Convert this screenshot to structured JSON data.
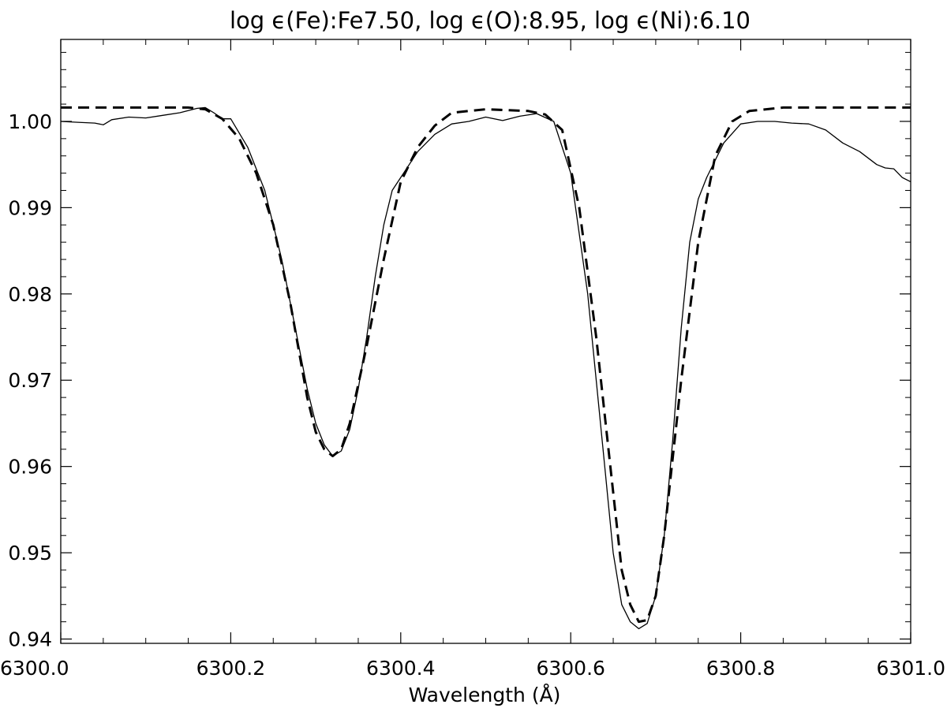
{
  "chart_data": {
    "type": "line",
    "title": "log ϵ(Fe):Fe7.50, log ϵ(O):8.95, log ϵ(Ni):6.10",
    "xlabel": "Wavelength (Å)",
    "ylabel": "",
    "xlim": [
      6300.0,
      6301.0
    ],
    "ylim": [
      0.9395,
      1.0095
    ],
    "x_ticks": [
      6300.0,
      6300.2,
      6300.4,
      6300.6,
      6300.8,
      6301.0
    ],
    "x_tick_labels": [
      "6300.0",
      "6300.2",
      "6300.4",
      "6300.6",
      "6300.8",
      "6301.0"
    ],
    "y_ticks": [
      0.94,
      0.95,
      0.96,
      0.97,
      0.98,
      0.99,
      1.0
    ],
    "y_tick_labels": [
      "0.94",
      "0.95",
      "0.96",
      "0.97",
      "0.98",
      "0.99",
      "1.00"
    ],
    "grid": false,
    "legend": "none",
    "series": [
      {
        "style": "solid",
        "color": "#000000",
        "x": [
          6300.0,
          6300.02,
          6300.04,
          6300.05,
          6300.06,
          6300.08,
          6300.1,
          6300.12,
          6300.14,
          6300.16,
          6300.17,
          6300.18,
          6300.19,
          6300.2,
          6300.22,
          6300.24,
          6300.26,
          6300.27,
          6300.28,
          6300.29,
          6300.3,
          6300.31,
          6300.32,
          6300.33,
          6300.34,
          6300.35,
          6300.36,
          6300.37,
          6300.38,
          6300.39,
          6300.4,
          6300.42,
          6300.44,
          6300.46,
          6300.48,
          6300.5,
          6300.52,
          6300.54,
          6300.56,
          6300.58,
          6300.6,
          6300.62,
          6300.64,
          6300.65,
          6300.66,
          6300.67,
          6300.68,
          6300.69,
          6300.7,
          6300.71,
          6300.72,
          6300.73,
          6300.74,
          6300.75,
          6300.76,
          6300.78,
          6300.8,
          6300.82,
          6300.84,
          6300.86,
          6300.88,
          6300.9,
          6300.92,
          6300.94,
          6300.96,
          6300.97,
          6300.98,
          6300.99,
          6301.0
        ],
        "y": [
          1.0,
          0.9999,
          0.9998,
          0.9996,
          1.0002,
          1.0005,
          1.0004,
          1.0007,
          1.001,
          1.0015,
          1.0016,
          1.001,
          1.0003,
          1.0003,
          0.997,
          0.992,
          0.984,
          0.979,
          0.974,
          0.969,
          0.965,
          0.9625,
          0.9612,
          0.9618,
          0.9643,
          0.969,
          0.975,
          0.982,
          0.988,
          0.992,
          0.9935,
          0.9965,
          0.9985,
          0.9997,
          1.0,
          1.0005,
          1.0001,
          1.0006,
          1.0009,
          1.0,
          0.994,
          0.98,
          0.96,
          0.95,
          0.944,
          0.942,
          0.9412,
          0.9418,
          0.945,
          0.952,
          0.963,
          0.976,
          0.986,
          0.991,
          0.9935,
          0.9975,
          0.9997,
          1.0,
          1.0,
          0.9998,
          0.9997,
          0.999,
          0.9975,
          0.9965,
          0.995,
          0.9946,
          0.9945,
          0.9935,
          0.993
        ]
      },
      {
        "style": "dashed",
        "color": "#000000",
        "x": [
          6300.0,
          6300.05,
          6300.1,
          6300.15,
          6300.17,
          6300.19,
          6300.21,
          6300.23,
          6300.25,
          6300.27,
          6300.29,
          6300.3,
          6300.31,
          6300.32,
          6300.33,
          6300.34,
          6300.36,
          6300.38,
          6300.4,
          6300.42,
          6300.44,
          6300.46,
          6300.5,
          6300.55,
          6300.57,
          6300.59,
          6300.61,
          6300.63,
          6300.65,
          6300.66,
          6300.67,
          6300.68,
          6300.69,
          6300.7,
          6300.71,
          6300.73,
          6300.75,
          6300.77,
          6300.79,
          6300.81,
          6300.85,
          6300.9,
          6301.0
        ],
        "y": [
          1.0016,
          1.0016,
          1.0016,
          1.0016,
          1.0014,
          1.0003,
          0.998,
          0.994,
          0.988,
          0.979,
          0.968,
          0.964,
          0.962,
          0.9612,
          0.962,
          0.965,
          0.974,
          0.984,
          0.993,
          0.997,
          0.9995,
          1.001,
          1.0014,
          1.0012,
          1.0008,
          0.999,
          0.99,
          0.975,
          0.957,
          0.948,
          0.944,
          0.942,
          0.9422,
          0.945,
          0.952,
          0.97,
          0.986,
          0.996,
          1.0,
          1.0012,
          1.0016,
          1.0016,
          1.0016
        ]
      }
    ]
  }
}
